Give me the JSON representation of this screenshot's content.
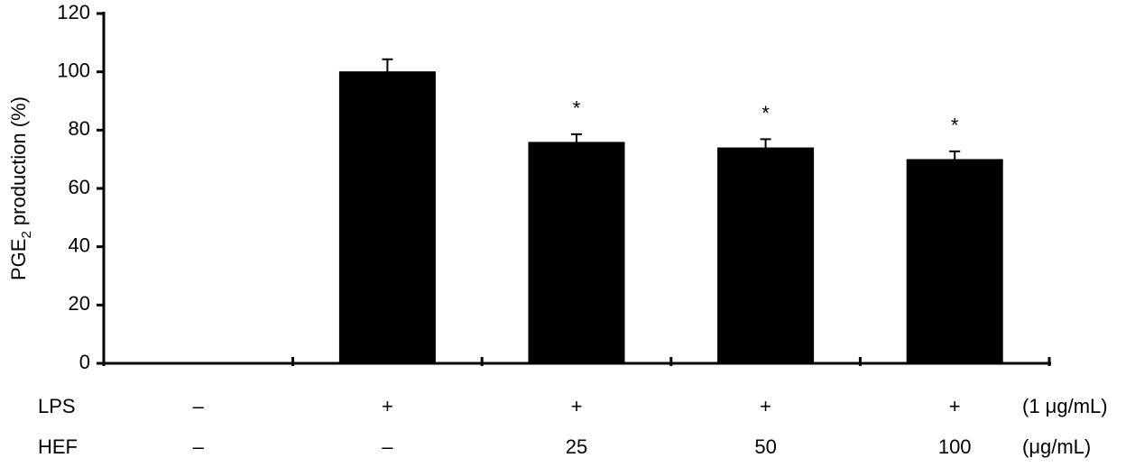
{
  "chart_data": {
    "type": "bar",
    "ylabel": {
      "text": "PGE",
      "sub": "2",
      "rest": " production (%)"
    },
    "categories": [
      null,
      null,
      null,
      null,
      null
    ],
    "values": [
      0,
      100,
      75.8,
      73.9,
      69.9
    ],
    "errors": [
      0,
      4.3,
      2.8,
      3,
      2.8
    ],
    "annotations": [
      null,
      null,
      "*",
      "*",
      "*"
    ],
    "color": "#000000",
    "ylim": [
      0,
      120
    ],
    "yticks": [
      0,
      20,
      40,
      60,
      80,
      100,
      120
    ],
    "conditions": [
      {
        "name": "LPS",
        "values": [
          "–",
          "+",
          "+",
          "+",
          "+"
        ],
        "unit": "(1 μg/mL)"
      },
      {
        "name": "HEF",
        "values": [
          "–",
          "–",
          "25",
          "50",
          "100"
        ],
        "unit": "(μg/mL)"
      }
    ]
  }
}
